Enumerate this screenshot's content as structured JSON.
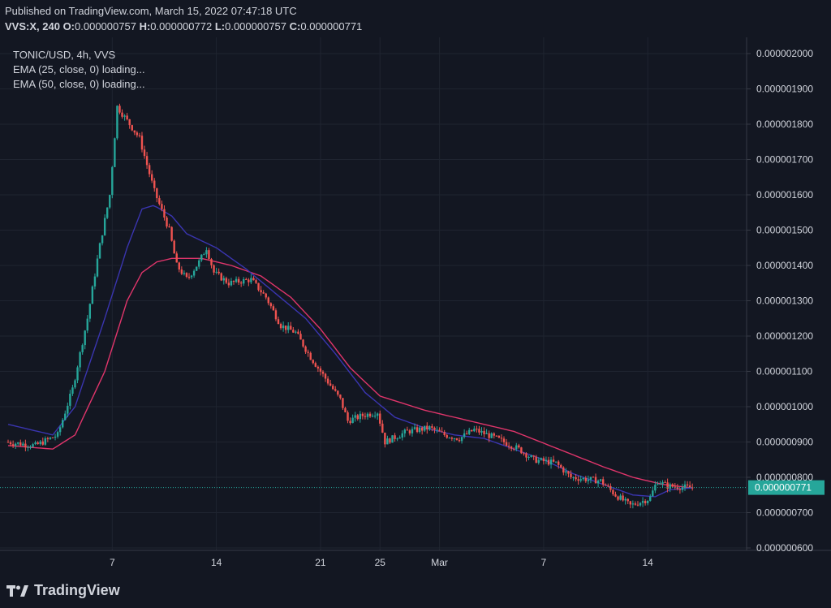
{
  "header": {
    "published": "Published on TradingView.com, March 15, 2022 07:47:18 UTC",
    "symbol_interval": "VVS:X, 240",
    "o_label": "O:",
    "o_value": "0.000000757",
    "h_label": "H:",
    "h_value": "0.000000772",
    "l_label": "L:",
    "l_value": "0.000000757",
    "c_label": "C:",
    "c_value": "0.000000771"
  },
  "legend": {
    "title": "TONIC/USD, 4h, VVS",
    "ema25": "EMA (25, close, 0) loading...",
    "ema50": "EMA (50, close, 0) loading..."
  },
  "footer": {
    "brand": "TradingView"
  },
  "colors": {
    "up": "#26a69a",
    "down": "#ef5350",
    "ema25": "#3a35b0",
    "ema50": "#e0356b",
    "background": "#131722",
    "grid": "#1f2430",
    "last_price": "#26a69a"
  },
  "chart_data": {
    "type": "candlestick",
    "y_axis": {
      "min": 6e-07,
      "max": 2e-06,
      "grid": true,
      "tick_labels": [
        "0.000000600",
        "0.000000700",
        "0.000000800",
        "0.000000900",
        "0.000001000",
        "0.000001100",
        "0.000001200",
        "0.000001300",
        "0.000001400",
        "0.000001500",
        "0.000001600",
        "0.000001700",
        "0.000001800",
        "0.000001900",
        "0.000002000"
      ]
    },
    "x_axis": {
      "tick_labels": [
        {
          "label": "7",
          "day": 7
        },
        {
          "label": "14",
          "day": 14
        },
        {
          "label": "21",
          "day": 21
        },
        {
          "label": "25",
          "day": 25
        },
        {
          "label": "Mar",
          "day": 29
        },
        {
          "label": "7",
          "day": 36
        },
        {
          "label": "14",
          "day": 43
        }
      ]
    },
    "last_price": "0.000000771",
    "trend_keypoints": [
      [
        0,
        9e-07
      ],
      [
        2,
        8.9e-07
      ],
      [
        3.5,
        9.2e-07
      ],
      [
        4.5,
        1.05e-06
      ],
      [
        5.5,
        1.25e-06
      ],
      [
        6.3,
        1.45e-06
      ],
      [
        7,
        1.6e-06
      ],
      [
        7.5,
        1.85e-06
      ],
      [
        8,
        1.82e-06
      ],
      [
        9,
        1.76e-06
      ],
      [
        10,
        1.61e-06
      ],
      [
        11,
        1.5e-06
      ],
      [
        11.5,
        1.4e-06
      ],
      [
        12.2,
        1.36e-06
      ],
      [
        13,
        1.41e-06
      ],
      [
        13.5,
        1.45e-06
      ],
      [
        14,
        1.38e-06
      ],
      [
        15,
        1.35e-06
      ],
      [
        16.5,
        1.36e-06
      ],
      [
        17.5,
        1.31e-06
      ],
      [
        18.5,
        1.23e-06
      ],
      [
        19.5,
        1.21e-06
      ],
      [
        20.5,
        1.14e-06
      ],
      [
        21.5,
        1.08e-06
      ],
      [
        22.5,
        1.02e-06
      ],
      [
        23,
        9.6e-07
      ],
      [
        24,
        9.75e-07
      ],
      [
        25,
        9.85e-07
      ],
      [
        25.5,
        9e-07
      ],
      [
        27,
        9.3e-07
      ],
      [
        28.5,
        9.4e-07
      ],
      [
        29.5,
        9.2e-07
      ],
      [
        30.5,
        9.1e-07
      ],
      [
        31.5,
        9.35e-07
      ],
      [
        33,
        9.1e-07
      ],
      [
        34.5,
        8.8e-07
      ],
      [
        35.5,
        8.5e-07
      ],
      [
        37,
        8.4e-07
      ],
      [
        38,
        8e-07
      ],
      [
        40,
        7.9e-07
      ],
      [
        41,
        7.5e-07
      ],
      [
        42,
        7.2e-07
      ],
      [
        43.3,
        7.4e-07
      ],
      [
        43.8,
        7.9e-07
      ],
      [
        44.5,
        7.75e-07
      ],
      [
        46,
        7.71e-07
      ]
    ],
    "ema25_keypoints": [
      [
        0,
        9.5e-07
      ],
      [
        3,
        9.2e-07
      ],
      [
        4.5,
        1e-06
      ],
      [
        6.5,
        1.25e-06
      ],
      [
        8,
        1.45e-06
      ],
      [
        9,
        1.56e-06
      ],
      [
        9.8,
        1.57e-06
      ],
      [
        11,
        1.54e-06
      ],
      [
        12,
        1.49e-06
      ],
      [
        13,
        1.47e-06
      ],
      [
        14,
        1.45e-06
      ],
      [
        16,
        1.39e-06
      ],
      [
        18,
        1.32e-06
      ],
      [
        20,
        1.25e-06
      ],
      [
        22,
        1.15e-06
      ],
      [
        24,
        1.04e-06
      ],
      [
        26,
        9.7e-07
      ],
      [
        28,
        9.4e-07
      ],
      [
        30,
        9.2e-07
      ],
      [
        32,
        9.1e-07
      ],
      [
        34,
        8.8e-07
      ],
      [
        36,
        8.5e-07
      ],
      [
        38,
        8.1e-07
      ],
      [
        40,
        7.8e-07
      ],
      [
        42,
        7.5e-07
      ],
      [
        43.5,
        7.45e-07
      ],
      [
        44.5,
        7.65e-07
      ],
      [
        46,
        7.7e-07
      ]
    ],
    "ema50_keypoints": [
      [
        0,
        8.9e-07
      ],
      [
        3,
        8.8e-07
      ],
      [
        4.5,
        9.2e-07
      ],
      [
        6.5,
        1.1e-06
      ],
      [
        8,
        1.3e-06
      ],
      [
        9,
        1.38e-06
      ],
      [
        10,
        1.41e-06
      ],
      [
        11,
        1.42e-06
      ],
      [
        13,
        1.42e-06
      ],
      [
        15,
        1.4e-06
      ],
      [
        17,
        1.37e-06
      ],
      [
        19,
        1.31e-06
      ],
      [
        21,
        1.22e-06
      ],
      [
        23,
        1.11e-06
      ],
      [
        25,
        1.03e-06
      ],
      [
        28,
        9.9e-07
      ],
      [
        31,
        9.6e-07
      ],
      [
        34,
        9.3e-07
      ],
      [
        37,
        8.8e-07
      ],
      [
        40,
        8.3e-07
      ],
      [
        42,
        8e-07
      ],
      [
        44,
        7.8e-07
      ],
      [
        46,
        7.7e-07
      ]
    ]
  }
}
